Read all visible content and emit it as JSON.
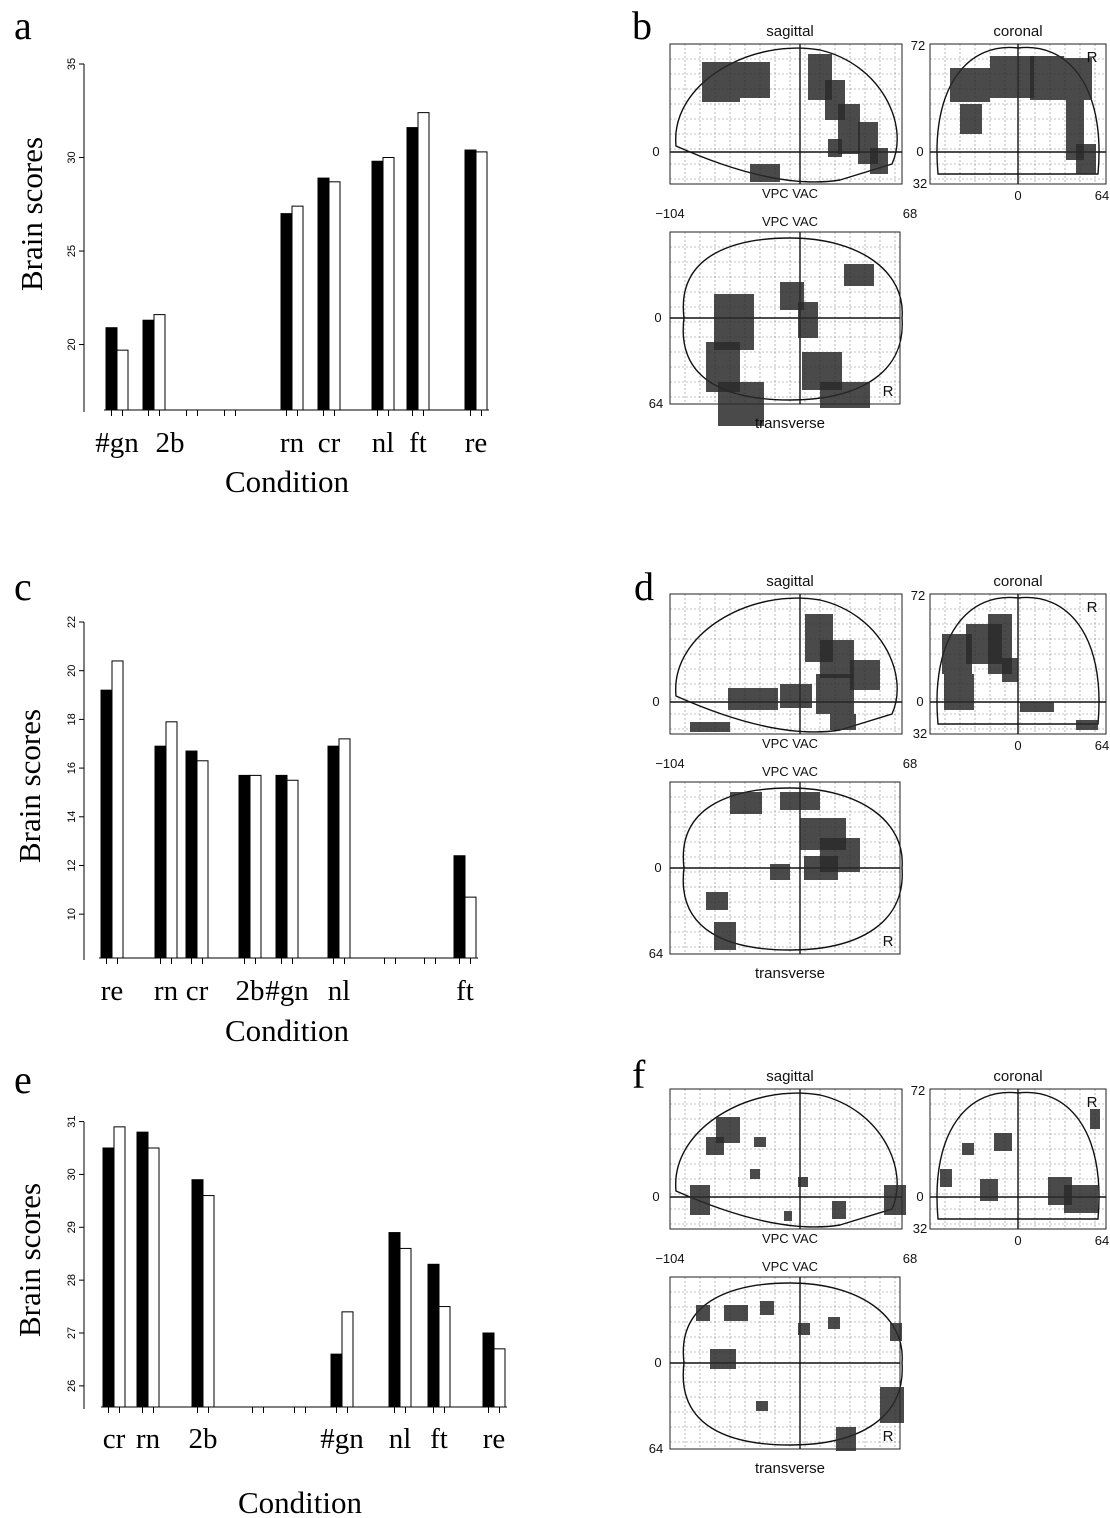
{
  "panels": {
    "a": "a",
    "b": "b",
    "c": "c",
    "d": "d",
    "e": "e",
    "f": "f"
  },
  "chart_data": [
    {
      "type": "bar",
      "panel": "a",
      "ylabel": "Brain scores",
      "xlabel": "Condition",
      "ylim": [
        16.5,
        35
      ],
      "yticks": [
        20,
        25,
        30,
        35
      ],
      "categories": [
        "#gn",
        "2b",
        "",
        "",
        "rn",
        "cr",
        "nl",
        "ft",
        "re"
      ],
      "series": [
        {
          "color": "#000000",
          "values": [
            20.9,
            21.3,
            null,
            null,
            27.0,
            28.9,
            29.8,
            31.6,
            30.4
          ]
        },
        {
          "color": "#ffffff",
          "values": [
            19.7,
            21.6,
            null,
            null,
            27.4,
            28.7,
            30.0,
            32.4,
            30.3
          ]
        }
      ]
    },
    {
      "type": "bar",
      "panel": "c",
      "ylabel": "Brain scores",
      "xlabel": "Condition",
      "ylim": [
        8.2,
        22
      ],
      "yticks": [
        10,
        12,
        14,
        16,
        18,
        20,
        22
      ],
      "categories": [
        "re",
        "rn",
        "cr",
        "2b",
        "#gn",
        "nl",
        "",
        "",
        "ft"
      ],
      "series": [
        {
          "color": "#000000",
          "values": [
            19.2,
            16.9,
            16.7,
            15.7,
            15.7,
            16.9,
            null,
            null,
            12.4
          ]
        },
        {
          "color": "#ffffff",
          "values": [
            20.4,
            17.9,
            16.3,
            15.7,
            15.5,
            17.2,
            null,
            null,
            10.7
          ]
        }
      ]
    },
    {
      "type": "bar",
      "panel": "e",
      "ylabel": "Brain scores",
      "xlabel": "Condition",
      "ylim": [
        25.6,
        31.2
      ],
      "yticks": [
        26,
        27,
        28,
        29,
        30,
        31
      ],
      "categories": [
        "cr",
        "rn",
        "2b",
        "",
        "",
        "#gn",
        "nl",
        "ft",
        "re"
      ],
      "series": [
        {
          "color": "#000000",
          "values": [
            30.5,
            30.8,
            29.9,
            null,
            null,
            26.6,
            28.9,
            28.3,
            27.0
          ]
        },
        {
          "color": "#ffffff",
          "values": [
            30.9,
            30.5,
            29.6,
            null,
            null,
            27.4,
            28.6,
            27.5,
            26.7
          ]
        }
      ]
    }
  ],
  "glass_brains": [
    {
      "panel": "b",
      "sagittal": "sagittal",
      "coronal": "coronal",
      "transverse": "transverse",
      "vpc_vac": "VPC VAC",
      "n104": "−104",
      "p68": "68",
      "p72": "72",
      "zero": "0",
      "n32": "32",
      "p64": "64",
      "r": "R"
    },
    {
      "panel": "d",
      "sagittal": "sagittal",
      "coronal": "coronal",
      "transverse": "transverse",
      "vpc_vac": "VPC VAC",
      "n104": "−104",
      "p68": "68",
      "p72": "72",
      "zero": "0",
      "n32": "32",
      "p64": "64",
      "r": "R"
    },
    {
      "panel": "f",
      "sagittal": "sagittal",
      "coronal": "coronal",
      "transverse": "transverse",
      "vpc_vac": "VPC VAC",
      "n104": "−104",
      "p68": "68",
      "p72": "72",
      "zero": "0",
      "n32": "32",
      "p64": "64",
      "r": "R"
    }
  ]
}
